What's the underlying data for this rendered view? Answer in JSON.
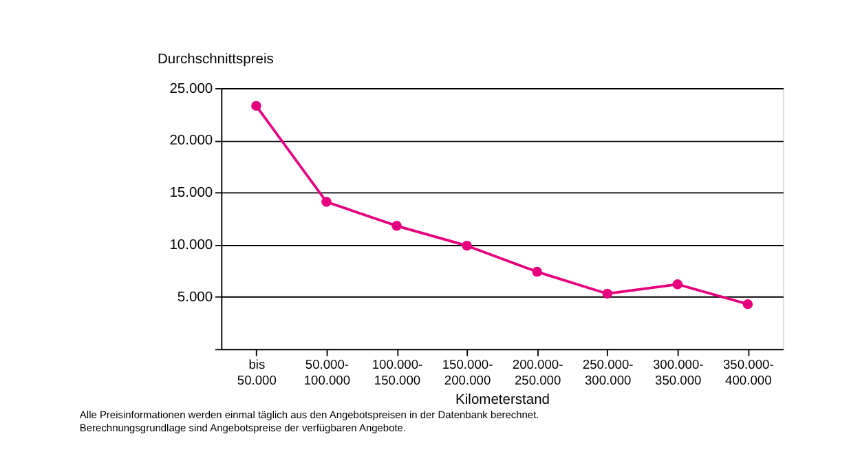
{
  "chart_data": {
    "type": "line",
    "ylabel": "Durchschnittspreis",
    "xlabel": "Kilometerstand",
    "categories": [
      "bis 50.000",
      "50.000-100.000",
      "100.000-150.000",
      "150.000-200.000",
      "200.000-250.000",
      "250.000-300.000",
      "300.000-350.000",
      "350.000-400.000"
    ],
    "series": [
      {
        "color": "#e6007e",
        "values": [
          23300,
          14100,
          11800,
          9900,
          7400,
          5300,
          6200,
          4300
        ]
      }
    ],
    "ylim": [
      0,
      25000
    ],
    "yticks": [
      {
        "value": 0,
        "label": null
      },
      {
        "value": 5000,
        "label": "5.000"
      },
      {
        "value": 10000,
        "label": "10.000"
      },
      {
        "value": 15000,
        "label": "15.000"
      },
      {
        "value": 20000,
        "label": "20.000"
      },
      {
        "value": 25000,
        "label": "25.000"
      }
    ],
    "grid": "y",
    "marker": "circle",
    "line_style": "solid",
    "legend": false,
    "annotations": [
      "Alle Preisinformationen werden einmal täglich aus den Angebotspreisen in der Datenbank berechnet.",
      "Berechnungsgrundlage sind Angebotspreise der verfügbaren Angebote."
    ]
  }
}
